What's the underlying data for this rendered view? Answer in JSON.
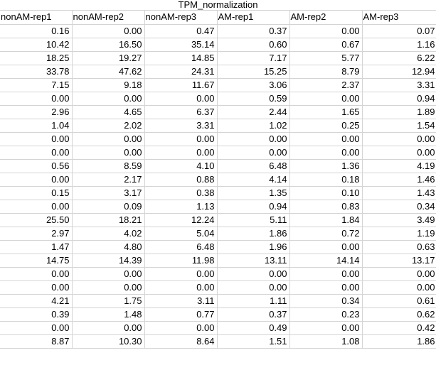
{
  "sheet": {
    "title": "TPM_normalization",
    "columns": [
      "nonAM-rep1",
      "nonAM-rep2",
      "nonAM-rep3",
      "AM-rep1",
      "AM-rep2",
      "AM-rep3"
    ],
    "rows": [
      [
        "0.16",
        "0.00",
        "0.47",
        "0.37",
        "0.00",
        "0.07"
      ],
      [
        "10.42",
        "16.50",
        "35.14",
        "0.60",
        "0.67",
        "1.16"
      ],
      [
        "18.25",
        "19.27",
        "14.85",
        "7.17",
        "5.77",
        "6.22"
      ],
      [
        "33.78",
        "47.62",
        "24.31",
        "15.25",
        "8.79",
        "12.94"
      ],
      [
        "7.15",
        "9.18",
        "11.67",
        "3.06",
        "2.37",
        "3.31"
      ],
      [
        "0.00",
        "0.00",
        "0.00",
        "0.59",
        "0.00",
        "0.94"
      ],
      [
        "2.96",
        "4.65",
        "6.37",
        "2.44",
        "1.65",
        "1.89"
      ],
      [
        "1.04",
        "2.02",
        "3.31",
        "1.02",
        "0.25",
        "1.54"
      ],
      [
        "0.00",
        "0.00",
        "0.00",
        "0.00",
        "0.00",
        "0.00"
      ],
      [
        "0.00",
        "0.00",
        "0.00",
        "0.00",
        "0.00",
        "0.00"
      ],
      [
        "0.56",
        "8.59",
        "4.10",
        "6.48",
        "1.36",
        "4.19"
      ],
      [
        "0.00",
        "2.17",
        "0.88",
        "4.14",
        "0.18",
        "1.46"
      ],
      [
        "0.15",
        "3.17",
        "0.38",
        "1.35",
        "0.10",
        "1.43"
      ],
      [
        "0.00",
        "0.09",
        "1.13",
        "0.94",
        "0.83",
        "0.34"
      ],
      [
        "25.50",
        "18.21",
        "12.24",
        "5.11",
        "1.84",
        "3.49"
      ],
      [
        "2.97",
        "4.02",
        "5.04",
        "1.86",
        "0.72",
        "1.19"
      ],
      [
        "1.47",
        "4.80",
        "6.48",
        "1.96",
        "0.00",
        "0.63"
      ],
      [
        "14.75",
        "14.39",
        "11.98",
        "13.11",
        "14.14",
        "13.17"
      ],
      [
        "0.00",
        "0.00",
        "0.00",
        "0.00",
        "0.00",
        "0.00"
      ],
      [
        "0.00",
        "0.00",
        "0.00",
        "0.00",
        "0.00",
        "0.00"
      ],
      [
        "4.21",
        "1.75",
        "3.11",
        "1.11",
        "0.34",
        "0.61"
      ],
      [
        "0.39",
        "1.48",
        "0.77",
        "0.37",
        "0.23",
        "0.62"
      ],
      [
        "0.00",
        "0.00",
        "0.00",
        "0.49",
        "0.00",
        "0.42"
      ],
      [
        "8.87",
        "10.30",
        "8.64",
        "1.51",
        "1.08",
        "1.86"
      ]
    ]
  }
}
